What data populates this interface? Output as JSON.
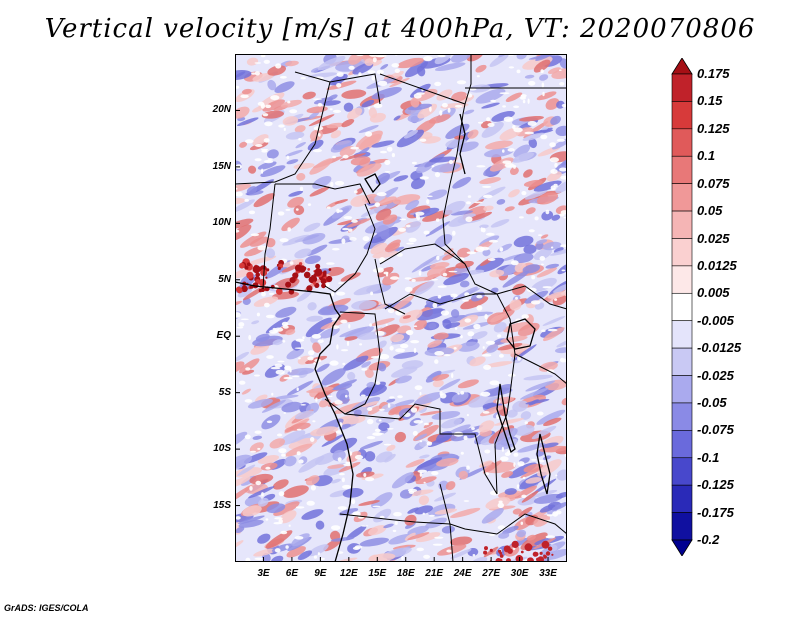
{
  "title": "Vertical velocity [m/s] at 400hPa, VT: 2020070806",
  "credit": "GrADS: IGES/COLA",
  "map": {
    "lon_range": [
      0,
      35
    ],
    "lat_range": [
      -20,
      25
    ],
    "lat_labels": [
      "20N",
      "15N",
      "10N",
      "5N",
      "EQ",
      "5S",
      "10S",
      "15S"
    ],
    "lat_values": [
      20,
      15,
      10,
      5,
      0,
      -5,
      -10,
      -15
    ],
    "lon_labels": [
      "3E",
      "6E",
      "9E",
      "12E",
      "15E",
      "18E",
      "21E",
      "24E",
      "27E",
      "30E",
      "33E"
    ],
    "lon_values": [
      3,
      6,
      9,
      12,
      15,
      18,
      21,
      24,
      27,
      30,
      33
    ]
  },
  "colorbar": {
    "labels": [
      "0.175",
      "0.15",
      "0.125",
      "0.1",
      "0.075",
      "0.05",
      "0.025",
      "0.0125",
      "0.005",
      "-0.005",
      "-0.0125",
      "-0.025",
      "-0.05",
      "-0.075",
      "-0.1",
      "-0.125",
      "-0.175",
      "-0.2"
    ],
    "colors": [
      "#a50f15",
      "#c0222a",
      "#d73a3a",
      "#e05a5a",
      "#e87878",
      "#f09898",
      "#f5b5b5",
      "#fad0d0",
      "#fde8e8",
      "#ffffff",
      "#e4e4fb",
      "#c9c9f4",
      "#aaaaee",
      "#8a8ae6",
      "#6a6adc",
      "#4848cc",
      "#2a2ab8",
      "#1010a0",
      "#000090"
    ]
  },
  "styles": {
    "pos_dark": "#b22222",
    "neg_dark": "#5050d8",
    "border": "#000000"
  }
}
